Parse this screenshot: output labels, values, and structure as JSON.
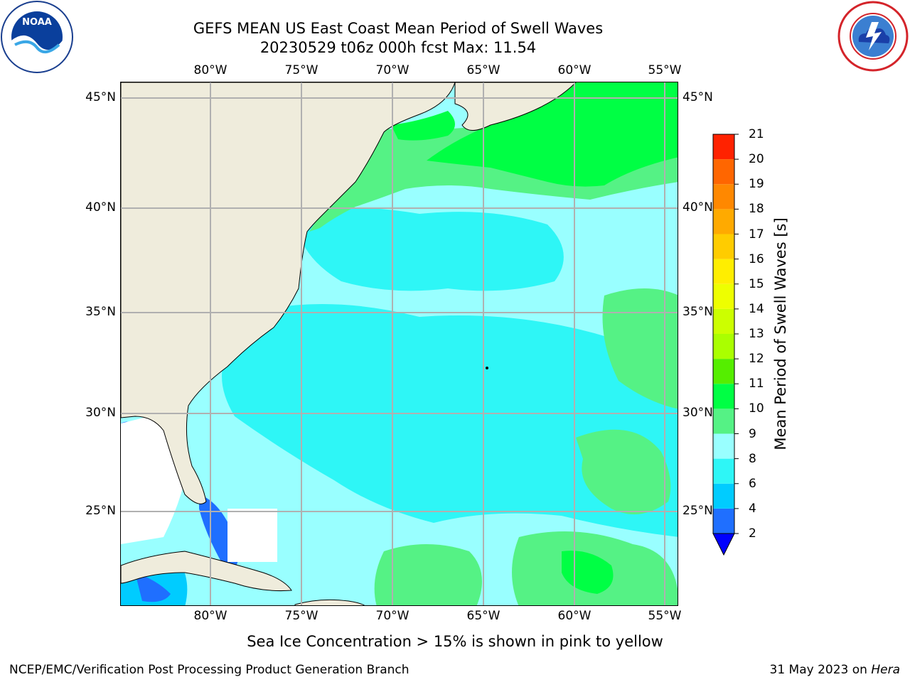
{
  "title": {
    "line1": "GEFS MEAN US East Coast Mean Period of Swell Waves",
    "line2": "20230529 t06z 000h fcst   Max: 11.54"
  },
  "map": {
    "lon_labels": [
      "80°W",
      "75°W",
      "70°W",
      "65°W",
      "60°W",
      "55°W"
    ],
    "lat_labels": [
      "45°N",
      "40°N",
      "35°N",
      "30°N",
      "25°N"
    ]
  },
  "colorbar": {
    "label": "Mean Period of Swell Waves [s]",
    "ticks": [
      "2",
      "4",
      "6",
      "8",
      "9",
      "10",
      "11",
      "12",
      "13",
      "14",
      "15",
      "16",
      "17",
      "18",
      "19",
      "20",
      "21"
    ],
    "colors": [
      "#1f6fff",
      "#00ccff",
      "#2ef6f6",
      "#99ffff",
      "#55f285",
      "#00ff44",
      "#55ee00",
      "#aaff00",
      "#ccff00",
      "#eeff00",
      "#ffee00",
      "#ffcc00",
      "#ffaa00",
      "#ff8800",
      "#ff6600",
      "#ff2200"
    ],
    "extend_color": "#0000ff"
  },
  "logos": {
    "noaa": "NOAA",
    "nws": "NATIONAL WEATHER SERVICE"
  },
  "subtitle": "Sea Ice Concentration > 15% is shown in pink to yellow",
  "footer": {
    "left": "NCEP/EMC/Verification Post Processing Product Generation Branch",
    "right_prefix": "31 May 2023 on ",
    "right_host": "Hera"
  }
}
